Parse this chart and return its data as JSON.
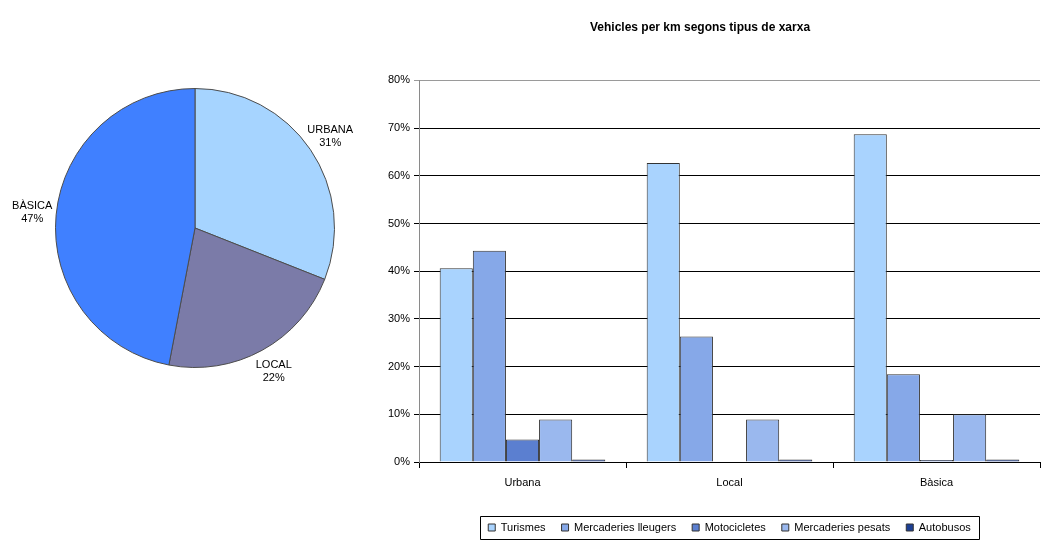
{
  "chart_data": [
    {
      "type": "pie",
      "categories": [
        "URBANA",
        "LOCAL",
        "BÀSICA"
      ],
      "values": [
        31,
        22,
        47
      ],
      "colors": [
        "#a6d4ff",
        "#7b7ba8",
        "#4080ff"
      ],
      "value_labels": [
        "31%",
        "22%",
        "47%"
      ]
    },
    {
      "type": "bar",
      "title": "Vehicles per km segons tipus de xarxa",
      "categories": [
        "Urbana",
        "Local",
        "Bàsica"
      ],
      "series": [
        {
          "name": "Turismes",
          "color": "#a9d3fe",
          "values": [
            40.6,
            62.7,
            68.7
          ]
        },
        {
          "name": "Mercaderies lleugers",
          "color": "#86a8e8",
          "values": [
            44.3,
            26.3,
            18.4
          ]
        },
        {
          "name": "Motocicletes",
          "color": "#5b7fd0",
          "values": [
            4.7,
            0,
            0.4
          ]
        },
        {
          "name": "Mercaderies pesats",
          "color": "#9ab8ee",
          "values": [
            8.9,
            8.9,
            10.0
          ]
        },
        {
          "name": "Autobusos",
          "color": "#1c3f94",
          "values": [
            0.5,
            0.5,
            0.5
          ]
        }
      ],
      "ylim": [
        0,
        80
      ],
      "yticks": [
        {
          "value": 0,
          "label": "0%"
        },
        {
          "value": 10,
          "label": "10%"
        },
        {
          "value": 20,
          "label": "20%"
        },
        {
          "value": 30,
          "label": "30%"
        },
        {
          "value": 40,
          "label": "40%"
        },
        {
          "value": 50,
          "label": "50%"
        },
        {
          "value": 60,
          "label": "60%"
        },
        {
          "value": 70,
          "label": "70%"
        },
        {
          "value": 80,
          "label": "80%"
        }
      ],
      "grid": "y",
      "legend": "bottom"
    }
  ]
}
